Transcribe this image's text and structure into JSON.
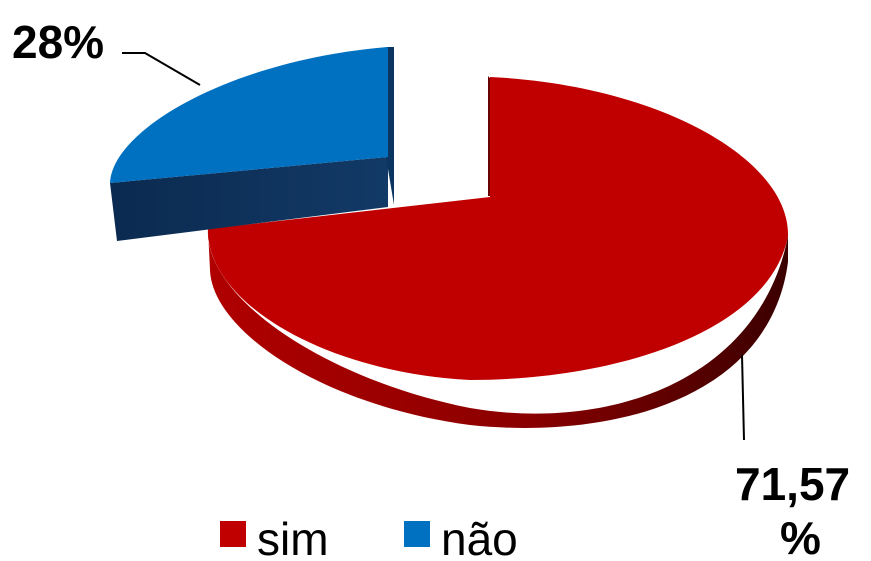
{
  "chart_data": {
    "type": "pie",
    "style": "3d-exploded",
    "categories": [
      "sim",
      "não"
    ],
    "values": [
      71.57,
      28
    ],
    "data_labels": [
      "71,57 %",
      "28%"
    ],
    "colors": [
      "#c00000",
      "#0070c0"
    ],
    "legend": {
      "placement": "bottom",
      "entries": [
        "sim",
        "não"
      ]
    }
  },
  "labels": {
    "sim_line1": "71,57",
    "sim_line2": "%",
    "nao": "28%"
  }
}
